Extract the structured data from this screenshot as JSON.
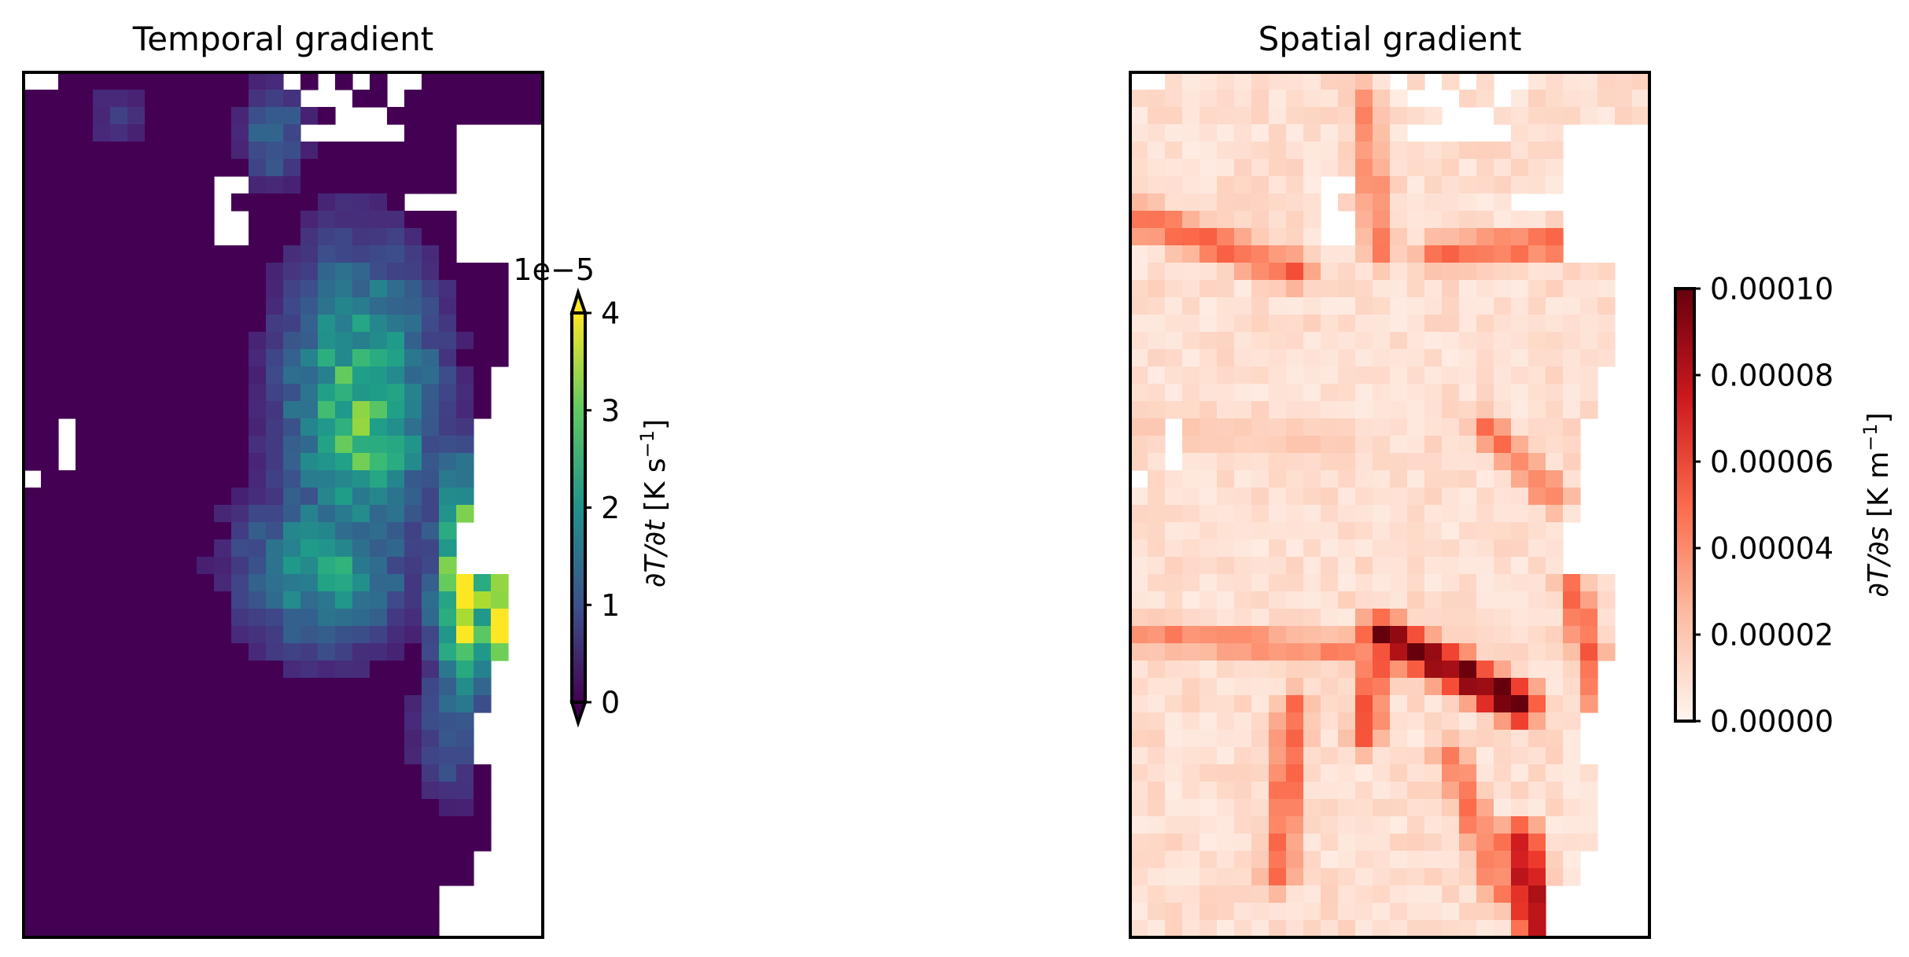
{
  "chart_data": [
    {
      "type": "heatmap",
      "title": "Temporal gradient",
      "grid": false,
      "colormap": "viridis",
      "nx": 30,
      "ny": 50,
      "clim": [
        0,
        4
      ],
      "colorbar": {
        "label_var": "∂T/∂t",
        "label_units": "[K s",
        "label_exp": "−1",
        "label_close": "]",
        "offset_text": "1e−5",
        "ticks": [
          0,
          1,
          2,
          3,
          4
        ],
        "tick_labels": [
          "0",
          "1",
          "2",
          "3",
          "4"
        ],
        "extend": "both"
      },
      "hotspots": [
        {
          "x": 19,
          "y": 19,
          "v": 2.8,
          "sx": 4.5,
          "sy": 9
        },
        {
          "x": 17,
          "y": 28,
          "v": 2.2,
          "sx": 5,
          "sy": 5
        },
        {
          "x": 25,
          "y": 29,
          "v": 4.0,
          "sx": 1.8,
          "sy": 7
        },
        {
          "x": 27,
          "y": 31,
          "v": 4.0,
          "sx": 1.3,
          "sy": 4
        },
        {
          "x": 14,
          "y": 3,
          "v": 1.4,
          "sx": 2,
          "sy": 3
        },
        {
          "x": 5,
          "y": 2,
          "v": 0.7,
          "sx": 2,
          "sy": 2
        },
        {
          "x": 24,
          "y": 37,
          "v": 1.2,
          "sx": 2,
          "sy": 5
        }
      ]
    },
    {
      "type": "heatmap",
      "title": "Spatial gradient",
      "grid": false,
      "colormap": "Reds",
      "nx": 30,
      "ny": 50,
      "clim": [
        0,
        0.0001
      ],
      "colorbar": {
        "label_var": "∂T/∂s",
        "label_units": "[K m",
        "label_exp": "−1",
        "label_close": "]",
        "ticks": [
          0,
          2e-05,
          4e-05,
          6e-05,
          8e-05,
          0.0001
        ],
        "tick_labels": [
          "0.00000",
          "0.00002",
          "0.00004",
          "0.00006",
          "0.00008",
          "0.00010"
        ],
        "extend": "neither"
      },
      "ridges": [
        {
          "x0": 14,
          "y0": 32,
          "x1": 22,
          "y1": 36,
          "v": 0.0001,
          "w": 1.3
        },
        {
          "x0": 14,
          "y0": 32,
          "x1": 13,
          "y1": 38,
          "v": 6e-05,
          "w": 1.1
        },
        {
          "x0": 22,
          "y0": 44,
          "x1": 23,
          "y1": 49,
          "v": 8e-05,
          "w": 1.4
        },
        {
          "x0": 0,
          "y0": 32,
          "x1": 13,
          "y1": 33,
          "v": 4e-05,
          "w": 1.2
        },
        {
          "x0": 9,
          "y0": 36,
          "x1": 8,
          "y1": 46,
          "v": 5e-05,
          "w": 1.2
        },
        {
          "x0": 18,
          "y0": 39,
          "x1": 21,
          "y1": 47,
          "v": 4.5e-05,
          "w": 1.2
        },
        {
          "x0": 0,
          "y0": 8,
          "x1": 9,
          "y1": 11,
          "v": 5e-05,
          "w": 1.3
        },
        {
          "x0": 17,
          "y0": 10,
          "x1": 29,
          "y1": 9,
          "v": 5e-05,
          "w": 1.2
        },
        {
          "x0": 13,
          "y0": 1,
          "x1": 14,
          "y1": 10,
          "v": 4e-05,
          "w": 1.2
        },
        {
          "x0": 20,
          "y0": 20,
          "x1": 24,
          "y1": 24,
          "v": 4.5e-05,
          "w": 1.2
        },
        {
          "x0": 25,
          "y0": 29,
          "x1": 27,
          "y1": 37,
          "v": 5e-05,
          "w": 1.1
        },
        {
          "x0": 0,
          "y0": 20,
          "x1": 12,
          "y1": 21,
          "v": 2e-05,
          "w": 2
        }
      ]
    }
  ]
}
